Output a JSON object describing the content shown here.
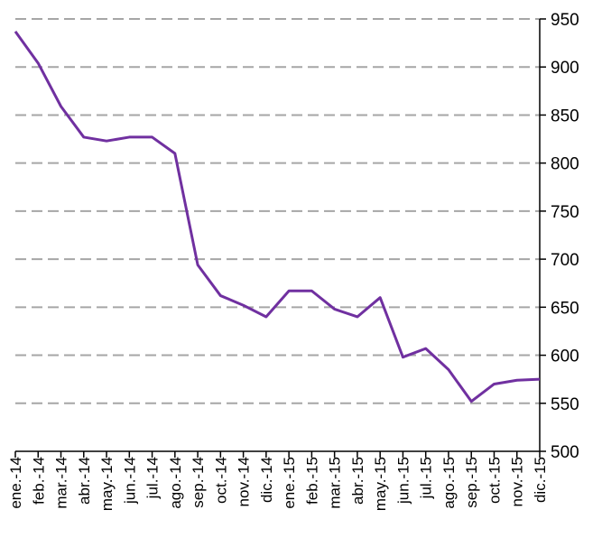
{
  "chart_data": {
    "type": "line",
    "categories": [
      "ene.-14",
      "feb.-14",
      "mar.-14",
      "abr.-14",
      "may.-14",
      "jun.-14",
      "jul.-14",
      "ago.-14",
      "sep.-14",
      "oct.-14",
      "nov.-14",
      "dic.-14",
      "ene.-15",
      "feb.-15",
      "mar.-15",
      "abr.-15",
      "may.-15",
      "jun.-15",
      "jul.-15",
      "ago.-15",
      "sep.-15",
      "oct.-15",
      "nov.-15",
      "dic.-15"
    ],
    "values": [
      937,
      904,
      859,
      827,
      823,
      827,
      827,
      810,
      694,
      662,
      652,
      640,
      667,
      667,
      648,
      640,
      660,
      598,
      607,
      585,
      552,
      570,
      574,
      575
    ],
    "color": "#7030a0",
    "ylim": [
      500,
      950
    ],
    "yticks": [
      500,
      550,
      600,
      650,
      700,
      750,
      800,
      850,
      900,
      950
    ],
    "grid": true,
    "y_axis_side": "right"
  }
}
